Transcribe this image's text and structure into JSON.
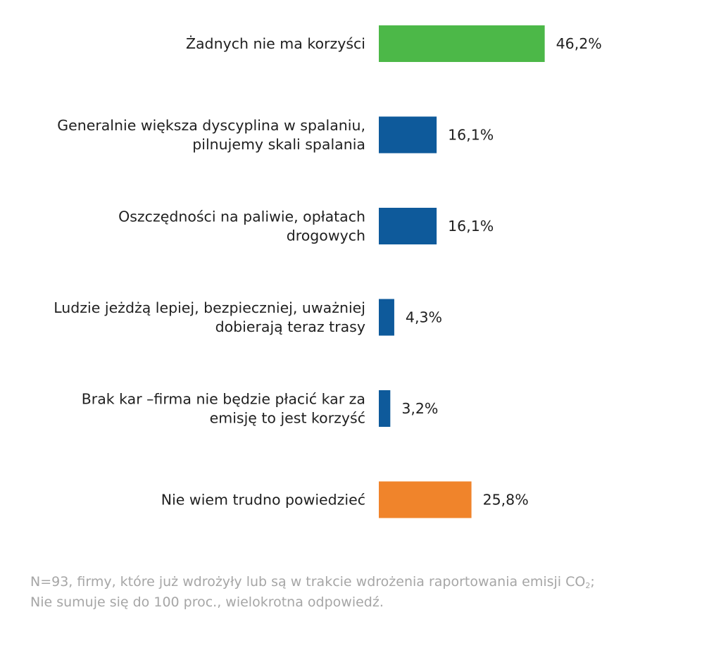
{
  "chart_data": {
    "type": "bar",
    "orientation": "horizontal",
    "categories": [
      [
        "Żadnych nie ma korzyści"
      ],
      [
        "Generalnie większa dyscyplina w spalaniu,",
        "pilnujemy skali spalania"
      ],
      [
        "Oszczędności na paliwie, opłatach",
        "drogowych"
      ],
      [
        "Ludzie jeżdżą lepiej, bezpieczniej, uważniej",
        "dobierają teraz trasy"
      ],
      [
        "Brak kar –firma nie będzie płacić kar za",
        "emisję to jest korzyść"
      ],
      [
        "Nie wiem trudno powiedzieć"
      ]
    ],
    "values": [
      46.2,
      16.1,
      16.1,
      4.3,
      3.2,
      25.8
    ],
    "value_labels": [
      "46,2%",
      "16,1%",
      "16,1%",
      "4,3%",
      "3,2%",
      "25,8%"
    ],
    "colors": [
      "#4cb848",
      "#0e5a9b",
      "#0e5a9b",
      "#0e5a9b",
      "#0e5a9b",
      "#f0842b"
    ],
    "grid": false,
    "legend": "none"
  },
  "footnote": {
    "line1_main": "N=93, firmy, które już wdrożyły lub są w trakcie wdrożenia raportowania emisji CO",
    "line1_sub": "2",
    "line1_end": ";",
    "line2": "Nie sumuje się do 100 proc., wielokrotna odpowiedź."
  }
}
